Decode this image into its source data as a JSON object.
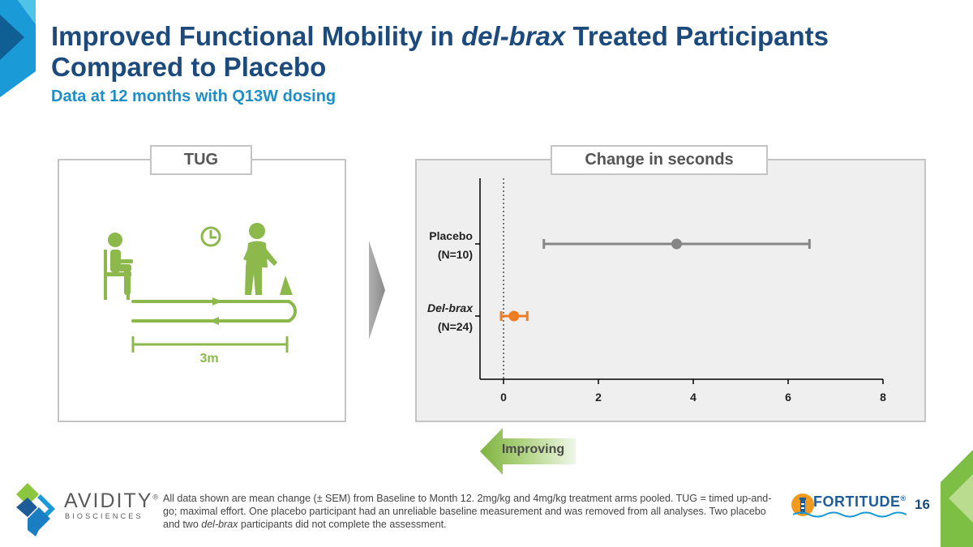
{
  "title": {
    "part1": "Improved Functional Mobility in ",
    "italic": "del-brax",
    "part2": " Treated Participants Compared to Placebo"
  },
  "subtitle": "Data at 12 months with Q13W dosing",
  "left_panel": {
    "label": "TUG",
    "distance_label": "3m"
  },
  "right_panel": {
    "label": "Change in seconds"
  },
  "improving_label": "Improving",
  "chart_data": {
    "type": "scatter",
    "subtype": "forest-plot",
    "title": "Change in seconds",
    "xlabel": "",
    "ylabel": "",
    "xlim": [
      -0.5,
      8
    ],
    "xticks": [
      0,
      2,
      4,
      6,
      8
    ],
    "xtick_labels": [
      "0",
      "2",
      "4",
      "6",
      "8"
    ],
    "reference_line": 0,
    "series": [
      {
        "name": "Placebo",
        "n_label": "(N=10)",
        "mean": 3.65,
        "lower": 0.85,
        "upper": 6.45,
        "color": "#868686",
        "italic": false
      },
      {
        "name": "Del-brax",
        "n_label": "(N=24)",
        "mean": 0.22,
        "lower": -0.05,
        "upper": 0.5,
        "color": "#ee7d23",
        "italic": true
      }
    ]
  },
  "company": {
    "name": "AVIDITY",
    "registered": "®",
    "sub": "BIOSCIENCES"
  },
  "footnote": {
    "part1": "All data shown are mean change (± SEM) from Baseline to Month 12. 2mg/kg and 4mg/kg treatment arms pooled. TUG = timed up-and-go; maximal effort. One placebo participant had an unreliable baseline measurement and was removed from all analyses. Two placebo and two ",
    "italic": "del-brax",
    "part2": " participants did not complete the assessment."
  },
  "trial": {
    "name": "FORTITUDE",
    "registered": "®"
  },
  "page_number": "16",
  "colors": {
    "title": "#1c4a7c",
    "subtitle": "#1f8ec5",
    "tug_green": "#8cb84c",
    "placebo": "#868686",
    "del_brax": "#ee7d23"
  }
}
